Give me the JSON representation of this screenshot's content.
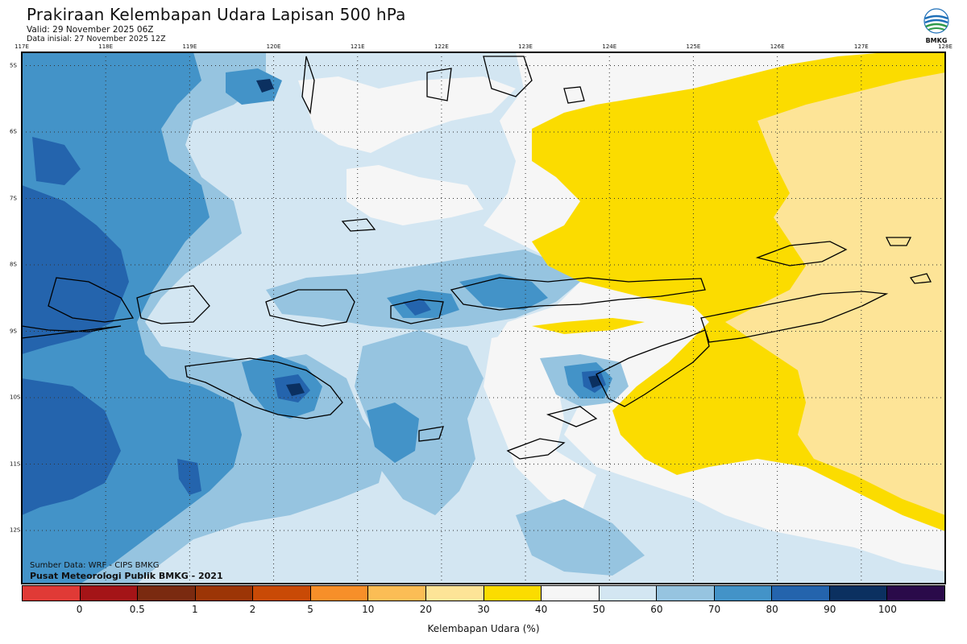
{
  "header": {
    "title": "Prakiraan Kelembapan Udara Lapisan 500 hPa",
    "valid": "Valid: 29 November 2025 06Z",
    "initial": "Data inisial: 27 November 2025 12Z"
  },
  "logo": {
    "text": "BMKG",
    "icon": "bmkg-logo-icon"
  },
  "map": {
    "variable": "Kelembapan Udara",
    "level": "500 hPa",
    "lon_labels": [
      "117E",
      "118E",
      "119E",
      "120E",
      "121E",
      "122E",
      "123E",
      "124E",
      "125E",
      "126E",
      "127E",
      "128E"
    ],
    "lat_labels": [
      "5S",
      "6S",
      "7S",
      "8S",
      "9S",
      "10S",
      "11S",
      "12S"
    ],
    "lon_values": [
      117,
      118,
      119,
      120,
      121,
      122,
      123,
      124,
      125,
      126,
      127,
      128
    ],
    "lat_values": [
      -5,
      -6,
      -7,
      -8,
      -9,
      -10,
      -11,
      -12
    ],
    "lon_range": [
      117,
      128
    ],
    "lat_range": [
      -4.8,
      -12.8
    ],
    "gridlines": "dotted"
  },
  "footer": {
    "source": "Sumber Data: WRF - CIPS BMKG",
    "publisher": "Pusat Meteorologi Publik BMKG - 2021"
  },
  "colorbar": {
    "label": "Kelembapan Udara (%)",
    "ticks": [
      "0",
      "0.5",
      "1",
      "2",
      "5",
      "10",
      "20",
      "30",
      "40",
      "50",
      "60",
      "70",
      "80",
      "90",
      "100"
    ],
    "colors": [
      "#e03a36",
      "#a41417",
      "#7a2a10",
      "#9c3506",
      "#c94a06",
      "#f78f29",
      "#fbbd55",
      "#fde497",
      "#fbdc00",
      "#f6f6f6",
      "#d3e6f2",
      "#96c4e0",
      "#4393c8",
      "#2464ad",
      "#0b3060",
      "#2a0a4a"
    ]
  },
  "colors": {
    "c50": "#f6f6f6",
    "c60": "#d3e6f2",
    "c70": "#96c4e0",
    "c80": "#4393c8",
    "c90": "#2464ad",
    "c100": "#0b3060",
    "c40": "#fbdc00",
    "c30": "#fde497"
  }
}
